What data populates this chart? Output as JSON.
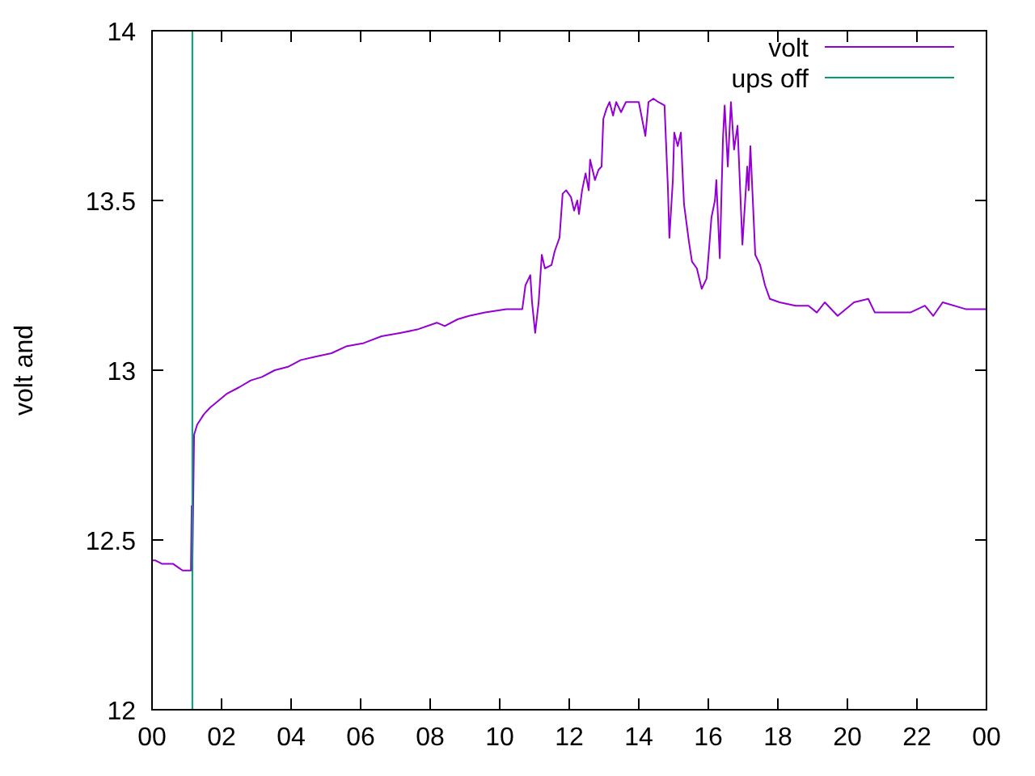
{
  "chart_data": {
    "type": "line",
    "ylabel": "volt and",
    "xlim": [
      0,
      24
    ],
    "ylim": [
      12,
      14
    ],
    "xticks": [
      {
        "value": 0,
        "label": "00"
      },
      {
        "value": 2,
        "label": "02"
      },
      {
        "value": 4,
        "label": "04"
      },
      {
        "value": 6,
        "label": "06"
      },
      {
        "value": 8,
        "label": "08"
      },
      {
        "value": 10,
        "label": "10"
      },
      {
        "value": 12,
        "label": "12"
      },
      {
        "value": 14,
        "label": "14"
      },
      {
        "value": 16,
        "label": "16"
      },
      {
        "value": 18,
        "label": "18"
      },
      {
        "value": 20,
        "label": "20"
      },
      {
        "value": 22,
        "label": "22"
      },
      {
        "value": 24,
        "label": "00"
      }
    ],
    "yticks": [
      12,
      12.5,
      13,
      13.5,
      14
    ],
    "grid": false,
    "legend": "top right",
    "marker": "none",
    "line_style": "solid",
    "series": [
      {
        "name": "volt",
        "color": "#9400d3",
        "x": [
          0,
          0.09,
          0.28,
          0.6,
          0.74,
          0.88,
          1.12,
          1.14,
          1.16,
          1.21,
          1.3,
          1.49,
          1.67,
          1.91,
          2.14,
          2.51,
          2.84,
          3.16,
          3.53,
          3.91,
          4.28,
          4.7,
          5.16,
          5.58,
          6.09,
          6.6,
          7.16,
          7.63,
          8.19,
          8.42,
          8.79,
          9.12,
          9.58,
          10.19,
          10.65,
          10.74,
          10.88,
          10.93,
          11.02,
          11.12,
          11.21,
          11.3,
          11.49,
          11.58,
          11.72,
          11.81,
          11.91,
          12.05,
          12.14,
          12.23,
          12.28,
          12.37,
          12.47,
          12.56,
          12.6,
          12.74,
          12.84,
          12.93,
          12.98,
          13.07,
          13.16,
          13.26,
          13.35,
          13.49,
          13.63,
          14.0,
          14.19,
          14.28,
          14.42,
          14.56,
          14.74,
          14.84,
          14.88,
          14.98,
          15.02,
          15.12,
          15.21,
          15.26,
          15.3,
          15.44,
          15.53,
          15.67,
          15.81,
          15.95,
          16.0,
          16.09,
          16.19,
          16.23,
          16.33,
          16.42,
          16.47,
          16.56,
          16.65,
          16.74,
          16.84,
          16.98,
          17.12,
          17.16,
          17.21,
          17.35,
          17.49,
          17.63,
          17.77,
          18.05,
          18.51,
          18.88,
          19.12,
          19.35,
          19.72,
          20.19,
          20.6,
          20.79,
          21.21,
          21.81,
          22.23,
          22.47,
          22.74,
          23.4,
          23.86,
          24.0
        ],
        "values": [
          12.44,
          12.44,
          12.43,
          12.43,
          12.42,
          12.41,
          12.41,
          12.6,
          12.41,
          12.81,
          12.84,
          12.87,
          12.89,
          12.91,
          12.93,
          12.95,
          12.97,
          12.98,
          13.0,
          13.01,
          13.03,
          13.04,
          13.05,
          13.07,
          13.08,
          13.1,
          13.11,
          13.12,
          13.14,
          13.13,
          13.15,
          13.16,
          13.17,
          13.18,
          13.18,
          13.25,
          13.28,
          13.2,
          13.11,
          13.2,
          13.34,
          13.3,
          13.31,
          13.35,
          13.39,
          13.52,
          13.53,
          13.51,
          13.47,
          13.5,
          13.46,
          13.53,
          13.58,
          13.53,
          13.62,
          13.56,
          13.59,
          13.6,
          13.74,
          13.77,
          13.79,
          13.75,
          13.79,
          13.76,
          13.79,
          13.79,
          13.69,
          13.79,
          13.8,
          13.79,
          13.78,
          13.53,
          13.39,
          13.56,
          13.7,
          13.66,
          13.7,
          13.58,
          13.49,
          13.38,
          13.32,
          13.3,
          13.24,
          13.27,
          13.33,
          13.45,
          13.5,
          13.56,
          13.33,
          13.68,
          13.78,
          13.6,
          13.79,
          13.65,
          13.72,
          13.37,
          13.6,
          13.53,
          13.66,
          13.34,
          13.31,
          13.25,
          13.21,
          13.2,
          13.19,
          13.19,
          13.17,
          13.2,
          13.16,
          13.2,
          13.21,
          13.17,
          13.17,
          13.17,
          13.19,
          13.16,
          13.2,
          13.18,
          13.18,
          13.18
        ]
      },
      {
        "name": "ups off",
        "color": "#009e73",
        "x": [
          1.16,
          1.16
        ],
        "values": [
          12,
          14
        ]
      }
    ]
  }
}
